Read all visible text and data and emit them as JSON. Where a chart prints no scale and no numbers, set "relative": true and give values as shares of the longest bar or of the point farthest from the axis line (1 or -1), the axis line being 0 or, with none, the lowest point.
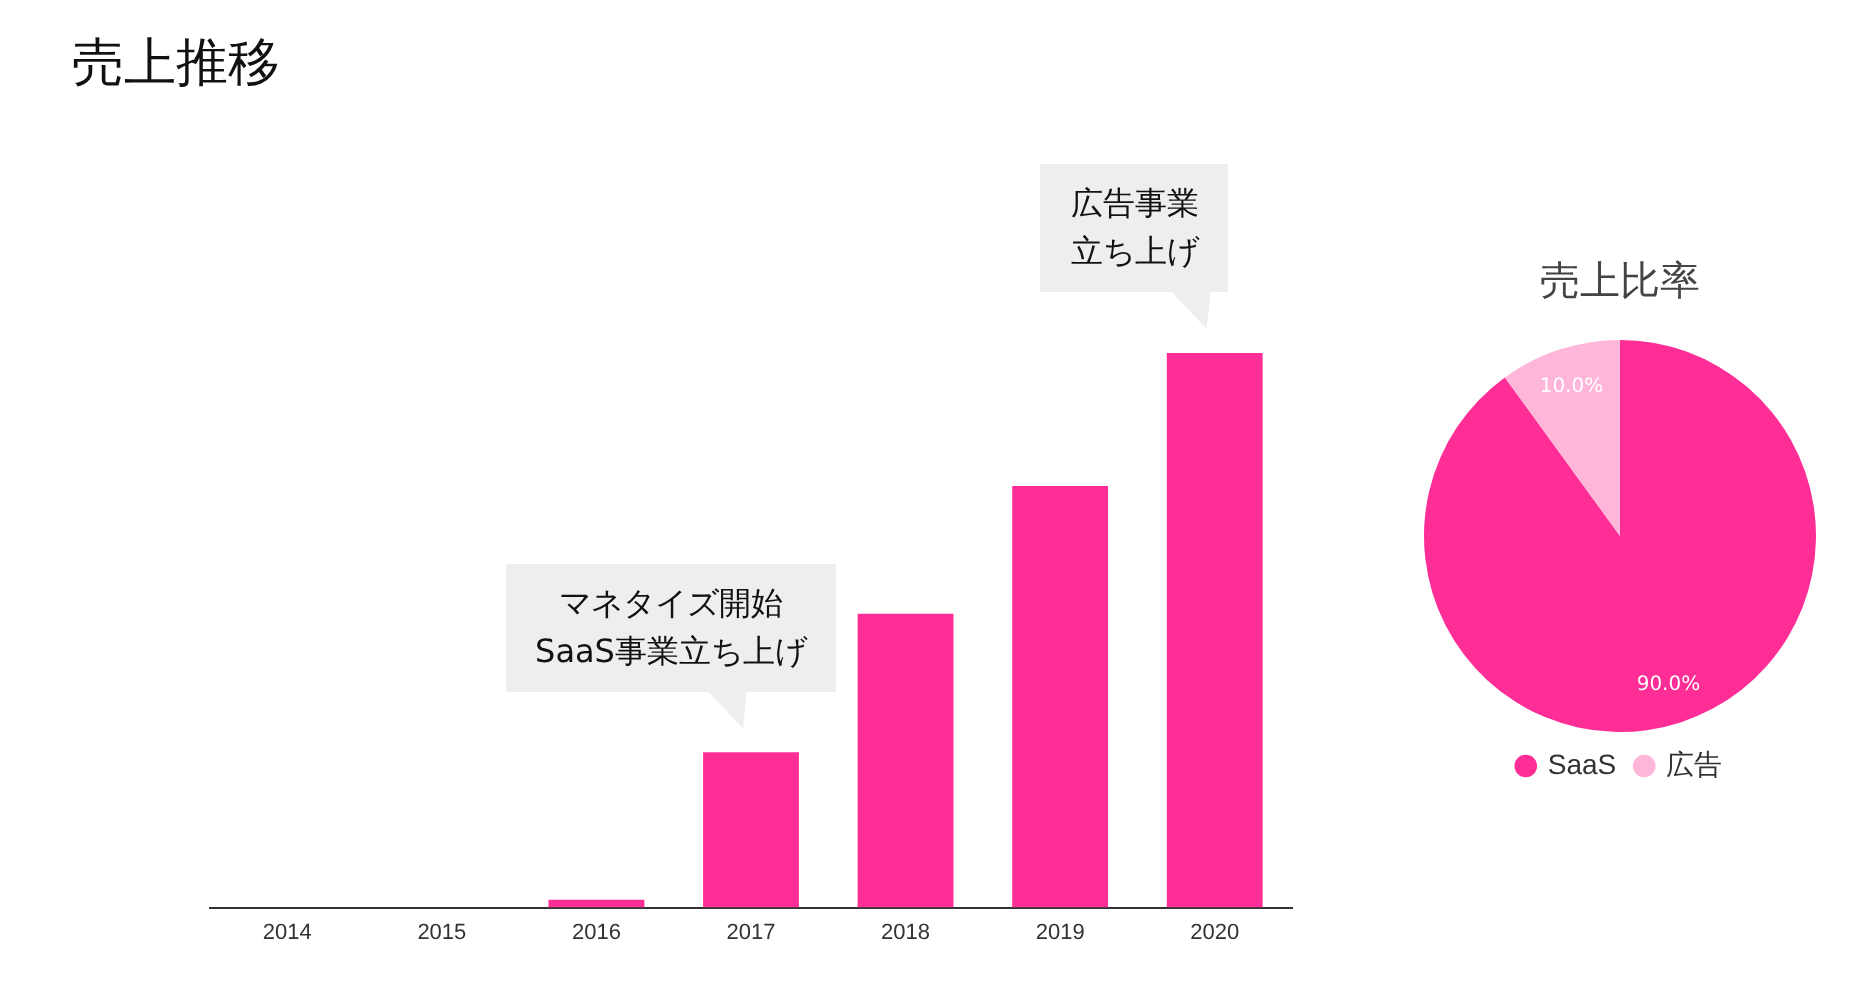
{
  "chart_data": [
    {
      "type": "bar",
      "title": "売上推移",
      "relative": true,
      "grid": false,
      "legend": false,
      "categories": [
        "2014",
        "2015",
        "2016",
        "2017",
        "2018",
        "2019",
        "2020"
      ],
      "values": [
        0,
        0,
        0.014,
        0.28,
        0.53,
        0.76,
        1
      ],
      "color": "#ff2d96",
      "annotations": [
        {
          "text": "マネタイズ開始SaaS事業立ち上げ",
          "x": "2017",
          "y": 0.28
        },
        {
          "text": "広告事業立ち上げ",
          "x": "2020",
          "y": 1
        }
      ]
    },
    {
      "type": "pie",
      "title": "売上比率",
      "legend": "bottom",
      "categories": [
        "SaaS",
        "広告"
      ],
      "values": [
        90,
        10
      ],
      "colors": [
        "#ff2d96",
        "#ffb6d9"
      ],
      "value_labels": [
        "90.0%",
        "10.0%"
      ]
    }
  ]
}
